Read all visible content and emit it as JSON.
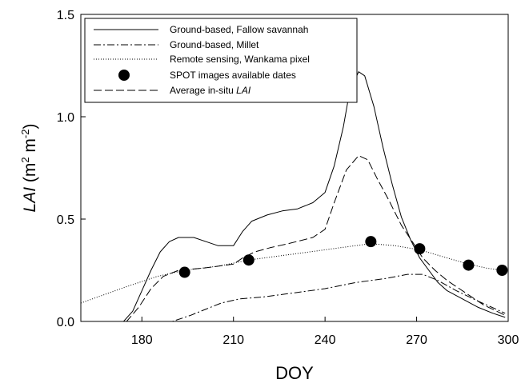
{
  "chart_data": {
    "type": "line",
    "xlabel": "DOY",
    "ylabel": {
      "italic": "LAI",
      "rest": " (m",
      "sup1": "2",
      "mid": " m",
      "sup2": "-2",
      "end": ")"
    },
    "xlim": [
      160,
      300
    ],
    "ylim": [
      0,
      1.5
    ],
    "xticks": [
      "180",
      "210",
      "240",
      "270",
      "300"
    ],
    "yticks": [
      "0.0",
      "0.5",
      "1.0",
      "1.5"
    ],
    "legend_position": "top-left",
    "series": [
      {
        "name": "Ground-based, Fallow savannah",
        "style": "solid",
        "points": [
          [
            160,
            0
          ],
          [
            174,
            0
          ],
          [
            177,
            0.05
          ],
          [
            180,
            0.15
          ],
          [
            183,
            0.25
          ],
          [
            186,
            0.34
          ],
          [
            189,
            0.39
          ],
          [
            192,
            0.41
          ],
          [
            197,
            0.41
          ],
          [
            201,
            0.39
          ],
          [
            205,
            0.37
          ],
          [
            210,
            0.37
          ],
          [
            213,
            0.44
          ],
          [
            216,
            0.49
          ],
          [
            221,
            0.52
          ],
          [
            226,
            0.54
          ],
          [
            231,
            0.55
          ],
          [
            236,
            0.58
          ],
          [
            240,
            0.63
          ],
          [
            243,
            0.76
          ],
          [
            246,
            0.95
          ],
          [
            248,
            1.12
          ],
          [
            251,
            1.22
          ],
          [
            253,
            1.2
          ],
          [
            256,
            1.05
          ],
          [
            259,
            0.85
          ],
          [
            262,
            0.67
          ],
          [
            265,
            0.51
          ],
          [
            268,
            0.4
          ],
          [
            271,
            0.31
          ],
          [
            274,
            0.25
          ],
          [
            277,
            0.19
          ],
          [
            280,
            0.15
          ],
          [
            285,
            0.11
          ],
          [
            290,
            0.07
          ],
          [
            295,
            0.04
          ],
          [
            299,
            0.02
          ]
        ]
      },
      {
        "name": "Ground-based, Millet",
        "style": "dashdot",
        "points": [
          [
            160,
            0
          ],
          [
            190,
            0
          ],
          [
            196,
            0.03
          ],
          [
            201,
            0.06
          ],
          [
            206,
            0.09
          ],
          [
            212,
            0.11
          ],
          [
            220,
            0.12
          ],
          [
            230,
            0.14
          ],
          [
            240,
            0.16
          ],
          [
            250,
            0.19
          ],
          [
            260,
            0.21
          ],
          [
            267,
            0.23
          ],
          [
            272,
            0.23
          ],
          [
            277,
            0.2
          ],
          [
            283,
            0.15
          ],
          [
            290,
            0.1
          ],
          [
            296,
            0.06
          ],
          [
            299,
            0.04
          ]
        ]
      },
      {
        "name": "Remote sensing, Wankama pixel",
        "style": "dotted",
        "points": [
          [
            160,
            0.09
          ],
          [
            175,
            0.17
          ],
          [
            185,
            0.22
          ],
          [
            194,
            0.25
          ],
          [
            205,
            0.27
          ],
          [
            215,
            0.3
          ],
          [
            225,
            0.32
          ],
          [
            235,
            0.34
          ],
          [
            245,
            0.36
          ],
          [
            255,
            0.38
          ],
          [
            263,
            0.37
          ],
          [
            271,
            0.35
          ],
          [
            280,
            0.31
          ],
          [
            287,
            0.28
          ],
          [
            293,
            0.26
          ],
          [
            298,
            0.25
          ]
        ]
      },
      {
        "name": "SPOT images available dates",
        "style": "markers",
        "points": [
          [
            194,
            0.24
          ],
          [
            215,
            0.3
          ],
          [
            255,
            0.39
          ],
          [
            271,
            0.355
          ],
          [
            287,
            0.275
          ],
          [
            298,
            0.25
          ]
        ]
      },
      {
        "name": "Average in-situ LAI",
        "name_parts": {
          "plain": "Average in-situ ",
          "italic": "LAI"
        },
        "style": "dashed",
        "points": [
          [
            160,
            0
          ],
          [
            175,
            0
          ],
          [
            179,
            0.07
          ],
          [
            183,
            0.16
          ],
          [
            187,
            0.22
          ],
          [
            192,
            0.25
          ],
          [
            200,
            0.26
          ],
          [
            210,
            0.28
          ],
          [
            213,
            0.31
          ],
          [
            217,
            0.34
          ],
          [
            222,
            0.36
          ],
          [
            228,
            0.38
          ],
          [
            236,
            0.41
          ],
          [
            240,
            0.45
          ],
          [
            243,
            0.58
          ],
          [
            247,
            0.74
          ],
          [
            251,
            0.81
          ],
          [
            254,
            0.79
          ],
          [
            257,
            0.7
          ],
          [
            261,
            0.59
          ],
          [
            265,
            0.47
          ],
          [
            269,
            0.38
          ],
          [
            272,
            0.31
          ],
          [
            276,
            0.25
          ],
          [
            280,
            0.2
          ],
          [
            286,
            0.14
          ],
          [
            292,
            0.08
          ],
          [
            299,
            0.03
          ]
        ]
      }
    ]
  }
}
